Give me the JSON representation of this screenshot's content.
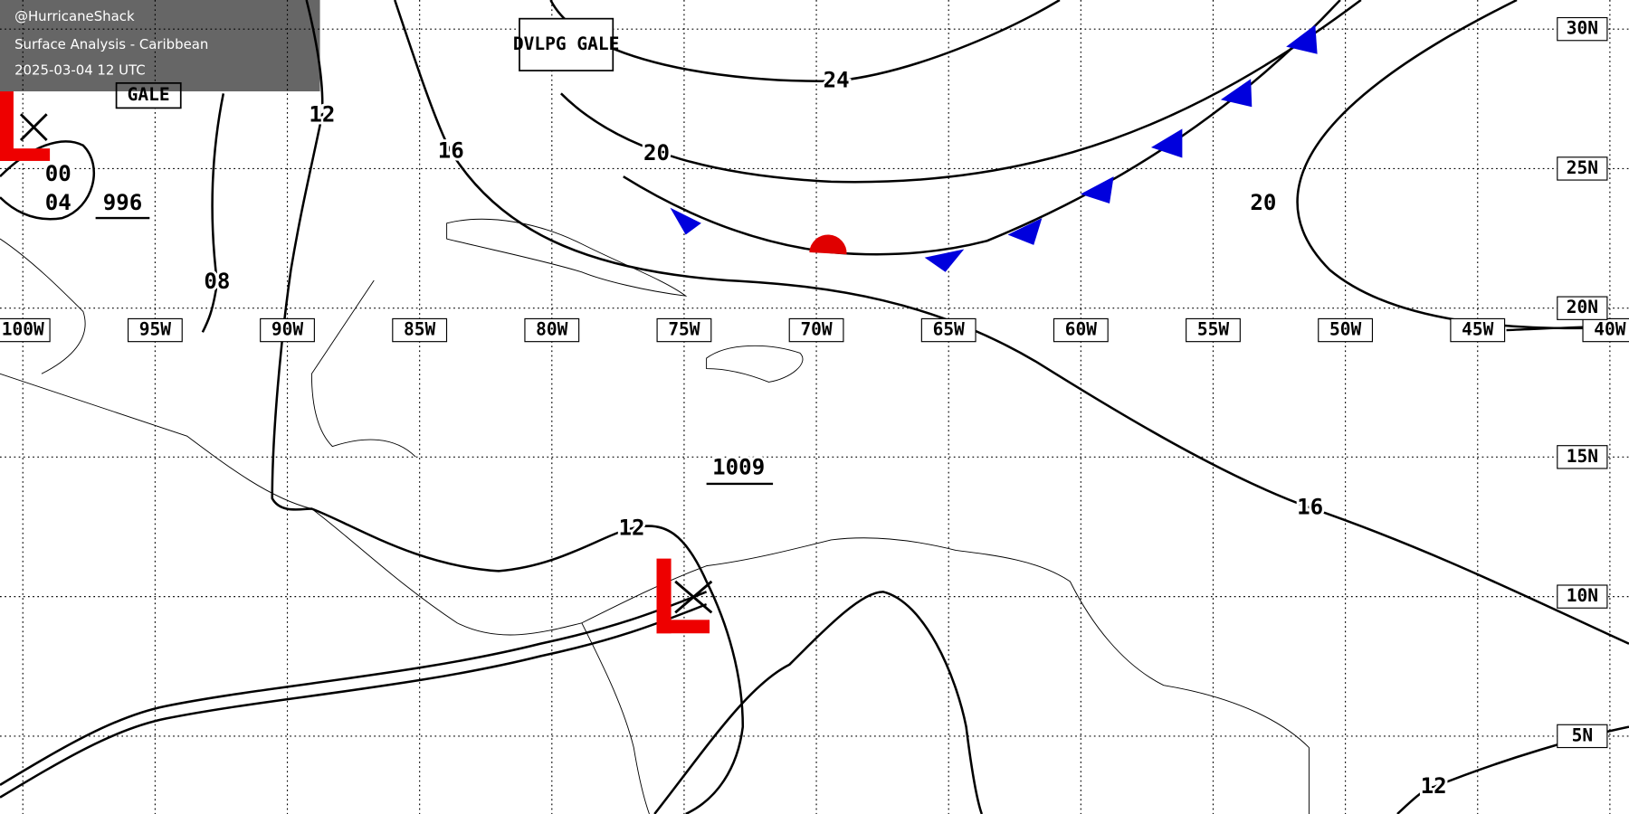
{
  "header": {
    "handle": "@HurricaneShack",
    "title": "Surface Analysis - Caribbean",
    "timestamp": "2025-03-04 12 UTC"
  },
  "grid": {
    "longitudes": [
      "100W",
      "95W",
      "90W",
      "85W",
      "80W",
      "75W",
      "70W",
      "65W",
      "60W",
      "55W",
      "50W",
      "45W",
      "40W"
    ],
    "latitudes": [
      "30N",
      "25N",
      "20N",
      "15N",
      "10N",
      "5N"
    ]
  },
  "isobar_labels": [
    "24",
    "20",
    "20",
    "16",
    "16",
    "12",
    "12",
    "12",
    "08",
    "00",
    "04"
  ],
  "pressure_centers": [
    "996",
    "1009"
  ],
  "map_notes": [
    "DVLPG GALE",
    "GALE"
  ]
}
